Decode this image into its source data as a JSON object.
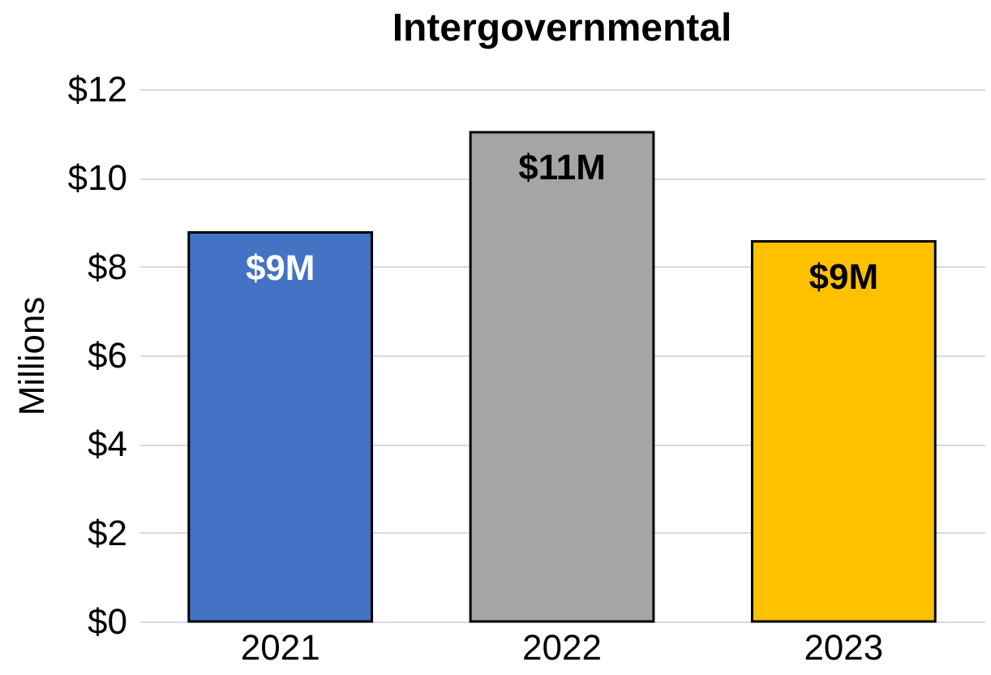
{
  "chart_data": {
    "type": "bar",
    "title": "Intergovernmental",
    "ylabel": "Millions",
    "categories": [
      "2021",
      "2022",
      "2023"
    ],
    "values": [
      8.77,
      11.03,
      8.57
    ],
    "colors": [
      "#4472c4",
      "#a5a5a5",
      "#ffc000"
    ],
    "value_labels": [
      "$9M",
      "$11M",
      "$9M"
    ],
    "ylim": [
      0,
      12
    ],
    "yticks": [
      {
        "value": 0,
        "label": "$0"
      },
      {
        "value": 2,
        "label": "$2"
      },
      {
        "value": 4,
        "label": "$4"
      },
      {
        "value": 6,
        "label": "$6"
      },
      {
        "value": 8,
        "label": "$8"
      },
      {
        "value": 10,
        "label": "$10"
      },
      {
        "value": 12,
        "label": "$12"
      }
    ],
    "grid": "y",
    "legend": false
  }
}
